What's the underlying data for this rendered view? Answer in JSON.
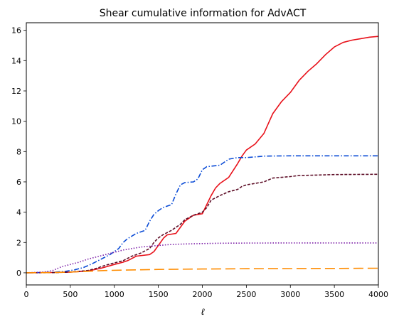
{
  "chart_data": {
    "type": "line",
    "title": "Shear cumulative information for AdvACT",
    "xlabel": "ℓ",
    "ylabel": "",
    "xlim": [
      0,
      4000
    ],
    "ylim": [
      -0.8,
      16.5
    ],
    "x_ticks": [
      0,
      500,
      1000,
      1500,
      2000,
      2500,
      3000,
      3500,
      4000
    ],
    "y_ticks": [
      0,
      2,
      4,
      6,
      8,
      10,
      12,
      14,
      16
    ],
    "grid": false,
    "legend": "none",
    "series": [
      {
        "color": "#e8111a",
        "style": "solid",
        "points": [
          [
            0,
            0
          ],
          [
            300,
            0.02
          ],
          [
            500,
            0.05
          ],
          [
            700,
            0.12
          ],
          [
            850,
            0.3
          ],
          [
            1000,
            0.55
          ],
          [
            1100,
            0.7
          ],
          [
            1150,
            0.8
          ],
          [
            1250,
            1.1
          ],
          [
            1400,
            1.2
          ],
          [
            1450,
            1.4
          ],
          [
            1500,
            1.8
          ],
          [
            1560,
            2.3
          ],
          [
            1600,
            2.5
          ],
          [
            1700,
            2.6
          ],
          [
            1800,
            3.4
          ],
          [
            1900,
            3.8
          ],
          [
            2000,
            3.9
          ],
          [
            2050,
            4.5
          ],
          [
            2100,
            5.1
          ],
          [
            2150,
            5.6
          ],
          [
            2200,
            5.9
          ],
          [
            2300,
            6.3
          ],
          [
            2400,
            7.2
          ],
          [
            2450,
            7.7
          ],
          [
            2500,
            8.1
          ],
          [
            2600,
            8.5
          ],
          [
            2700,
            9.2
          ],
          [
            2800,
            10.5
          ],
          [
            2900,
            11.3
          ],
          [
            3000,
            11.9
          ],
          [
            3100,
            12.7
          ],
          [
            3200,
            13.3
          ],
          [
            3300,
            13.8
          ],
          [
            3400,
            14.4
          ],
          [
            3500,
            14.9
          ],
          [
            3600,
            15.2
          ],
          [
            3700,
            15.35
          ],
          [
            3800,
            15.45
          ],
          [
            3900,
            15.55
          ],
          [
            4000,
            15.6
          ]
        ]
      },
      {
        "color": "#0a4bd6",
        "style": "dashdot",
        "points": [
          [
            0,
            0
          ],
          [
            300,
            0.03
          ],
          [
            450,
            0.1
          ],
          [
            550,
            0.2
          ],
          [
            650,
            0.35
          ],
          [
            750,
            0.6
          ],
          [
            850,
            0.9
          ],
          [
            950,
            1.2
          ],
          [
            1050,
            1.6
          ],
          [
            1100,
            2.0
          ],
          [
            1150,
            2.25
          ],
          [
            1250,
            2.6
          ],
          [
            1350,
            2.8
          ],
          [
            1400,
            3.4
          ],
          [
            1450,
            3.85
          ],
          [
            1500,
            4.1
          ],
          [
            1550,
            4.3
          ],
          [
            1650,
            4.5
          ],
          [
            1700,
            5.2
          ],
          [
            1750,
            5.8
          ],
          [
            1800,
            5.95
          ],
          [
            1900,
            6.0
          ],
          [
            1950,
            6.2
          ],
          [
            2000,
            6.8
          ],
          [
            2050,
            7.0
          ],
          [
            2200,
            7.1
          ],
          [
            2300,
            7.5
          ],
          [
            2400,
            7.6
          ],
          [
            2500,
            7.6
          ],
          [
            2600,
            7.65
          ],
          [
            2700,
            7.7
          ],
          [
            3000,
            7.72
          ],
          [
            3500,
            7.72
          ],
          [
            4000,
            7.72
          ]
        ]
      },
      {
        "color": "#5e0f28",
        "style": "dashed",
        "points": [
          [
            0,
            0
          ],
          [
            300,
            0.01
          ],
          [
            500,
            0.05
          ],
          [
            700,
            0.15
          ],
          [
            800,
            0.3
          ],
          [
            900,
            0.5
          ],
          [
            1000,
            0.65
          ],
          [
            1100,
            0.8
          ],
          [
            1200,
            1.1
          ],
          [
            1300,
            1.3
          ],
          [
            1400,
            1.6
          ],
          [
            1450,
            2.0
          ],
          [
            1500,
            2.3
          ],
          [
            1550,
            2.5
          ],
          [
            1650,
            2.8
          ],
          [
            1700,
            3.0
          ],
          [
            1750,
            3.2
          ],
          [
            1800,
            3.5
          ],
          [
            1900,
            3.8
          ],
          [
            2000,
            4.0
          ],
          [
            2050,
            4.3
          ],
          [
            2100,
            4.8
          ],
          [
            2200,
            5.1
          ],
          [
            2300,
            5.35
          ],
          [
            2400,
            5.5
          ],
          [
            2450,
            5.7
          ],
          [
            2500,
            5.8
          ],
          [
            2600,
            5.9
          ],
          [
            2700,
            6.0
          ],
          [
            2800,
            6.25
          ],
          [
            2900,
            6.3
          ],
          [
            3000,
            6.35
          ],
          [
            3100,
            6.42
          ],
          [
            3300,
            6.45
          ],
          [
            3500,
            6.48
          ],
          [
            4000,
            6.5
          ]
        ]
      },
      {
        "color": "#7d20a8",
        "style": "dotted",
        "points": [
          [
            0,
            0
          ],
          [
            200,
            0.05
          ],
          [
            300,
            0.15
          ],
          [
            400,
            0.4
          ],
          [
            500,
            0.55
          ],
          [
            600,
            0.7
          ],
          [
            700,
            0.9
          ],
          [
            800,
            1.05
          ],
          [
            900,
            1.2
          ],
          [
            1000,
            1.35
          ],
          [
            1100,
            1.5
          ],
          [
            1200,
            1.6
          ],
          [
            1300,
            1.7
          ],
          [
            1400,
            1.75
          ],
          [
            1500,
            1.8
          ],
          [
            1600,
            1.85
          ],
          [
            1700,
            1.88
          ],
          [
            1800,
            1.9
          ],
          [
            2000,
            1.93
          ],
          [
            2200,
            1.95
          ],
          [
            2500,
            1.96
          ],
          [
            3000,
            1.97
          ],
          [
            3500,
            1.97
          ],
          [
            4000,
            1.97
          ]
        ]
      },
      {
        "color": "#ff8c00",
        "style": "longdash",
        "points": [
          [
            0,
            0
          ],
          [
            300,
            0.02
          ],
          [
            500,
            0.05
          ],
          [
            700,
            0.1
          ],
          [
            900,
            0.15
          ],
          [
            1100,
            0.18
          ],
          [
            1300,
            0.2
          ],
          [
            1500,
            0.22
          ],
          [
            2000,
            0.25
          ],
          [
            2500,
            0.27
          ],
          [
            3000,
            0.28
          ],
          [
            3500,
            0.29
          ],
          [
            4000,
            0.3
          ]
        ]
      }
    ]
  }
}
